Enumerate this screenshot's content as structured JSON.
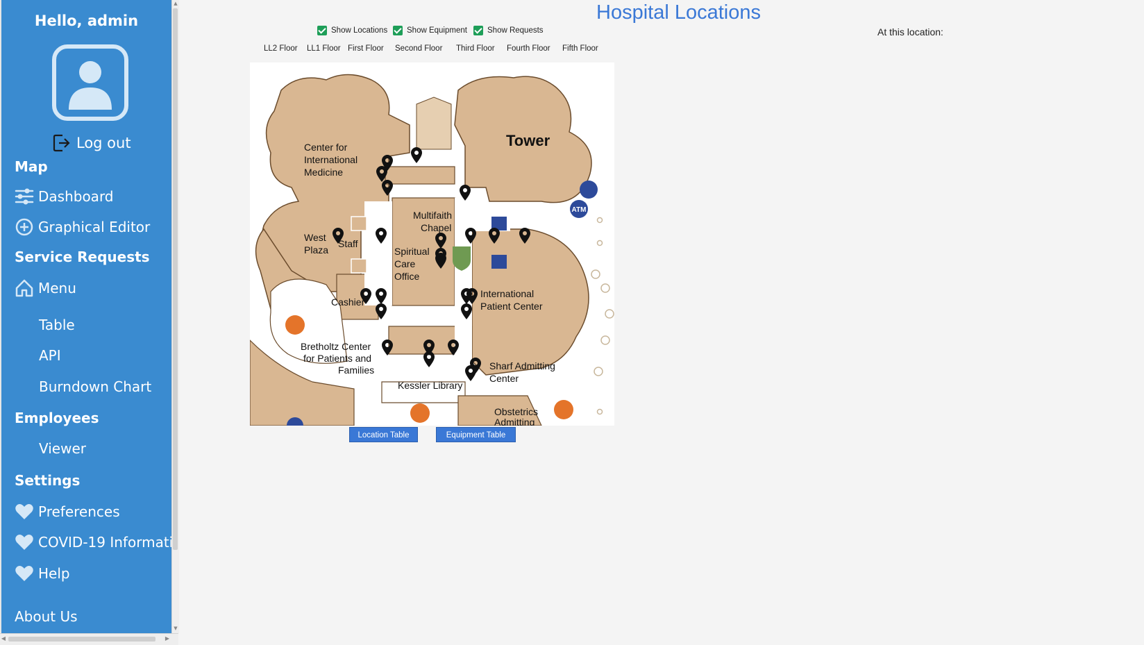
{
  "sidebar": {
    "greeting": "Hello, admin",
    "logout_label": "Log out",
    "sections": {
      "map": "Map",
      "service_requests": "Service Requests",
      "employees": "Employees",
      "settings": "Settings"
    },
    "items": {
      "dashboard": "Dashboard",
      "graphical_editor": "Graphical Editor",
      "menu": "Menu",
      "table": "Table",
      "api": "API",
      "burndown_chart": "Burndown Chart",
      "viewer": "Viewer",
      "preferences": "Preferences",
      "covid": "COVID-19 Informati...",
      "help": "Help",
      "about_us": "About Us"
    },
    "brand_color": "#3a8bd0"
  },
  "main": {
    "title": "Hospital Locations",
    "title_color": "#3a78d6",
    "checkboxes": [
      {
        "label": "Show Locations",
        "checked": true
      },
      {
        "label": "Show Equipment",
        "checked": true
      },
      {
        "label": "Show Requests",
        "checked": true
      }
    ],
    "at_location_label": "At this location:",
    "floors": [
      "LL2 Floor",
      "LL1 Floor",
      "First Floor",
      "Second Floor",
      "Third Floor",
      "Fourth Floor",
      "Fifth Floor"
    ],
    "buttons": {
      "location_table": "Location Table",
      "equipment_table": "Equipment Table"
    }
  },
  "map_labels": {
    "tower": "Tower",
    "cim1": "Center for",
    "cim2": "International",
    "cim3": "Medicine",
    "chapel1": "Multifaith",
    "chapel2": "Chapel",
    "spiritual1": "Spiritual",
    "spiritual2": "Care",
    "spiritual3": "Office",
    "west1": "West",
    "west2": "Plaza",
    "staff": "Staff",
    "cashier": "Cashier",
    "intl1": "International",
    "intl2": "Patient Center",
    "bret1": "Bretholtz Center",
    "bret2": "for Patients and",
    "bret3": "Families",
    "sharf1": "Sharf Admitting",
    "sharf2": "Center",
    "kessler": "Kessler Library",
    "obst1": "Obstetrics",
    "obst2": "Admitting",
    "atm": "ATM"
  }
}
